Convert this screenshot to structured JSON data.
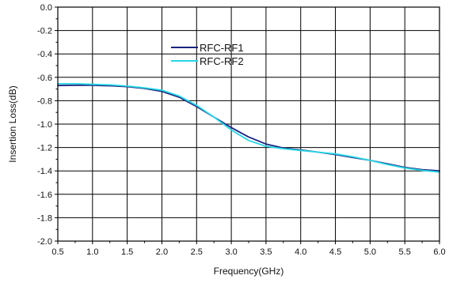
{
  "chart_data": {
    "type": "line",
    "title": "",
    "xlabel": "Frequency(GHz)",
    "ylabel": "Insertion Loss(dB)",
    "xlim": [
      0.5,
      6.0
    ],
    "ylim": [
      -2.0,
      0.0
    ],
    "x_ticks": [
      "0.5",
      "1.0",
      "1.5",
      "2.0",
      "2.5",
      "3.0",
      "3.5",
      "4.0",
      "4.5",
      "5.0",
      "5.5",
      "6.0"
    ],
    "y_ticks": [
      "0.0",
      "-0.2",
      "-0.4",
      "-0.6",
      "-0.8",
      "-1.0",
      "-1.2",
      "-1.4",
      "-1.6",
      "-1.8",
      "-2.0"
    ],
    "grid": true,
    "legend_position": "top-center",
    "series": [
      {
        "name": "RFC-RF1",
        "color": "#1a237e",
        "x": [
          0.5,
          0.75,
          1.0,
          1.25,
          1.5,
          1.75,
          2.0,
          2.25,
          2.5,
          2.75,
          3.0,
          3.25,
          3.5,
          3.75,
          4.0,
          4.25,
          4.5,
          4.75,
          5.0,
          5.25,
          5.5,
          5.75,
          6.0
        ],
        "y": [
          -0.67,
          -0.668,
          -0.668,
          -0.672,
          -0.68,
          -0.695,
          -0.72,
          -0.77,
          -0.85,
          -0.94,
          -1.03,
          -1.11,
          -1.17,
          -1.205,
          -1.22,
          -1.24,
          -1.26,
          -1.285,
          -1.31,
          -1.34,
          -1.37,
          -1.39,
          -1.4
        ]
      },
      {
        "name": "RFC-RF2",
        "color": "#26d7e6",
        "x": [
          0.5,
          0.75,
          1.0,
          1.25,
          1.5,
          1.75,
          2.0,
          2.25,
          2.5,
          2.75,
          3.0,
          3.25,
          3.5,
          3.75,
          4.0,
          4.25,
          4.5,
          4.75,
          5.0,
          5.25,
          5.5,
          5.75,
          6.0
        ],
        "y": [
          -0.655,
          -0.655,
          -0.66,
          -0.665,
          -0.675,
          -0.69,
          -0.71,
          -0.76,
          -0.84,
          -0.94,
          -1.05,
          -1.14,
          -1.19,
          -1.21,
          -1.225,
          -1.24,
          -1.255,
          -1.28,
          -1.31,
          -1.345,
          -1.375,
          -1.395,
          -1.41
        ]
      }
    ]
  }
}
